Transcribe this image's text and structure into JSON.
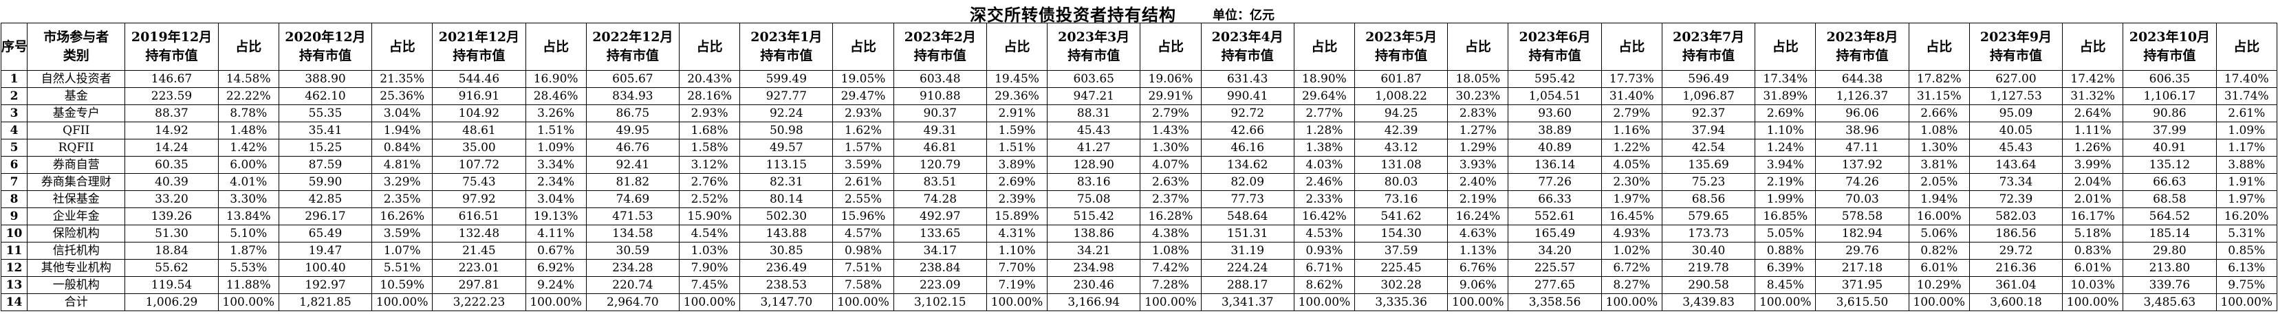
{
  "title": "深交所转债投资者持有结构",
  "unit_label": "单位：亿元",
  "table": {
    "index_header": "序号",
    "category_header": "市场参与者\n类别",
    "value_header_suffix": "持有市值",
    "ratio_header": "占比",
    "periods": [
      "2019年12月",
      "2020年12月",
      "2021年12月",
      "2022年12月",
      "2023年1月",
      "2023年2月",
      "2023年3月",
      "2023年4月",
      "2023年5月",
      "2023年6月",
      "2023年7月",
      "2023年8月",
      "2023年9月",
      "2023年10月"
    ],
    "rows": [
      {
        "index": "1",
        "category": "自然人投资者",
        "values": [
          "146.67",
          "388.90",
          "544.46",
          "605.67",
          "599.49",
          "603.48",
          "603.65",
          "631.43",
          "601.87",
          "595.42",
          "596.49",
          "644.38",
          "627.00",
          "606.35"
        ],
        "ratios": [
          "14.58%",
          "21.35%",
          "16.90%",
          "20.43%",
          "19.05%",
          "19.45%",
          "19.06%",
          "18.90%",
          "18.05%",
          "17.73%",
          "17.34%",
          "17.82%",
          "17.42%",
          "17.40%"
        ]
      },
      {
        "index": "2",
        "category": "基金",
        "values": [
          "223.59",
          "462.10",
          "916.91",
          "834.93",
          "927.77",
          "910.88",
          "947.21",
          "990.41",
          "1,008.22",
          "1,054.51",
          "1,096.87",
          "1,126.37",
          "1,127.53",
          "1,106.17"
        ],
        "ratios": [
          "22.22%",
          "25.36%",
          "28.46%",
          "28.16%",
          "29.47%",
          "29.36%",
          "29.91%",
          "29.64%",
          "30.23%",
          "31.40%",
          "31.89%",
          "31.15%",
          "31.32%",
          "31.74%"
        ]
      },
      {
        "index": "3",
        "category": "基金专户",
        "values": [
          "88.37",
          "55.35",
          "104.92",
          "86.75",
          "92.24",
          "90.37",
          "88.31",
          "92.72",
          "94.25",
          "93.60",
          "92.37",
          "96.06",
          "95.09",
          "90.86"
        ],
        "ratios": [
          "8.78%",
          "3.04%",
          "3.26%",
          "2.93%",
          "2.93%",
          "2.91%",
          "2.79%",
          "2.77%",
          "2.83%",
          "2.79%",
          "2.69%",
          "2.66%",
          "2.64%",
          "2.61%"
        ]
      },
      {
        "index": "4",
        "category": "QFII",
        "values": [
          "14.92",
          "35.41",
          "48.61",
          "49.95",
          "50.98",
          "49.31",
          "45.43",
          "42.66",
          "42.39",
          "38.89",
          "37.94",
          "38.96",
          "40.05",
          "37.99"
        ],
        "ratios": [
          "1.48%",
          "1.94%",
          "1.51%",
          "1.68%",
          "1.62%",
          "1.59%",
          "1.43%",
          "1.28%",
          "1.27%",
          "1.16%",
          "1.10%",
          "1.08%",
          "1.11%",
          "1.09%"
        ]
      },
      {
        "index": "5",
        "category": "RQFII",
        "values": [
          "14.24",
          "15.25",
          "35.00",
          "46.76",
          "49.57",
          "46.81",
          "41.27",
          "46.16",
          "43.12",
          "40.89",
          "42.54",
          "47.11",
          "45.43",
          "40.91"
        ],
        "ratios": [
          "1.42%",
          "0.84%",
          "1.09%",
          "1.58%",
          "1.57%",
          "1.51%",
          "1.30%",
          "1.38%",
          "1.29%",
          "1.22%",
          "1.24%",
          "1.30%",
          "1.26%",
          "1.17%"
        ]
      },
      {
        "index": "6",
        "category": "券商自营",
        "values": [
          "60.35",
          "87.59",
          "107.72",
          "92.41",
          "113.15",
          "120.79",
          "128.90",
          "134.62",
          "131.08",
          "136.14",
          "135.69",
          "137.92",
          "143.64",
          "135.12"
        ],
        "ratios": [
          "6.00%",
          "4.81%",
          "3.34%",
          "3.12%",
          "3.59%",
          "3.89%",
          "4.07%",
          "4.03%",
          "3.93%",
          "4.05%",
          "3.94%",
          "3.81%",
          "3.99%",
          "3.88%"
        ]
      },
      {
        "index": "7",
        "category": "券商集合理财",
        "values": [
          "40.39",
          "59.90",
          "75.43",
          "81.82",
          "82.31",
          "83.51",
          "83.16",
          "82.09",
          "80.03",
          "77.26",
          "75.23",
          "74.26",
          "73.34",
          "66.63"
        ],
        "ratios": [
          "4.01%",
          "3.29%",
          "2.34%",
          "2.76%",
          "2.61%",
          "2.69%",
          "2.63%",
          "2.46%",
          "2.40%",
          "2.30%",
          "2.19%",
          "2.05%",
          "2.04%",
          "1.91%"
        ]
      },
      {
        "index": "8",
        "category": "社保基金",
        "values": [
          "33.20",
          "42.85",
          "97.92",
          "74.69",
          "80.14",
          "74.28",
          "75.08",
          "77.73",
          "73.16",
          "66.33",
          "68.56",
          "70.03",
          "72.39",
          "68.58"
        ],
        "ratios": [
          "3.30%",
          "2.35%",
          "3.04%",
          "2.52%",
          "2.55%",
          "2.39%",
          "2.37%",
          "2.33%",
          "2.19%",
          "1.97%",
          "1.99%",
          "1.94%",
          "2.01%",
          "1.97%"
        ]
      },
      {
        "index": "9",
        "category": "企业年金",
        "values": [
          "139.26",
          "296.17",
          "616.51",
          "471.53",
          "502.30",
          "492.97",
          "515.42",
          "548.64",
          "541.62",
          "552.61",
          "579.65",
          "578.58",
          "582.03",
          "564.52"
        ],
        "ratios": [
          "13.84%",
          "16.26%",
          "19.13%",
          "15.90%",
          "15.96%",
          "15.89%",
          "16.28%",
          "16.42%",
          "16.24%",
          "16.45%",
          "16.85%",
          "16.00%",
          "16.17%",
          "16.20%"
        ]
      },
      {
        "index": "10",
        "category": "保险机构",
        "values": [
          "51.30",
          "65.49",
          "132.48",
          "134.58",
          "143.88",
          "133.65",
          "138.86",
          "151.31",
          "154.30",
          "165.49",
          "173.73",
          "182.94",
          "186.56",
          "185.14"
        ],
        "ratios": [
          "5.10%",
          "3.59%",
          "4.11%",
          "4.54%",
          "4.57%",
          "4.31%",
          "4.38%",
          "4.53%",
          "4.63%",
          "4.93%",
          "5.05%",
          "5.06%",
          "5.18%",
          "5.31%"
        ]
      },
      {
        "index": "11",
        "category": "信托机构",
        "values": [
          "18.84",
          "19.47",
          "21.45",
          "30.59",
          "30.85",
          "34.17",
          "34.21",
          "31.19",
          "37.59",
          "34.20",
          "30.40",
          "29.76",
          "29.72",
          "29.80"
        ],
        "ratios": [
          "1.87%",
          "1.07%",
          "0.67%",
          "1.03%",
          "0.98%",
          "1.10%",
          "1.08%",
          "0.93%",
          "1.13%",
          "1.02%",
          "0.88%",
          "0.82%",
          "0.83%",
          "0.85%"
        ]
      },
      {
        "index": "12",
        "category": "其他专业机构",
        "values": [
          "55.62",
          "100.40",
          "223.01",
          "234.28",
          "236.49",
          "238.84",
          "234.98",
          "224.24",
          "225.45",
          "225.57",
          "219.78",
          "217.18",
          "216.36",
          "213.80"
        ],
        "ratios": [
          "5.53%",
          "5.51%",
          "6.92%",
          "7.90%",
          "7.51%",
          "7.70%",
          "7.42%",
          "6.71%",
          "6.76%",
          "6.72%",
          "6.39%",
          "6.01%",
          "6.01%",
          "6.13%"
        ]
      },
      {
        "index": "13",
        "category": "一般机构",
        "values": [
          "119.54",
          "192.97",
          "297.81",
          "220.74",
          "238.53",
          "223.09",
          "230.46",
          "288.17",
          "302.28",
          "277.65",
          "290.58",
          "371.95",
          "361.04",
          "339.76"
        ],
        "ratios": [
          "11.88%",
          "10.59%",
          "9.24%",
          "7.45%",
          "7.58%",
          "7.19%",
          "7.28%",
          "8.62%",
          "9.06%",
          "8.27%",
          "8.45%",
          "10.29%",
          "10.03%",
          "9.75%"
        ]
      },
      {
        "index": "14",
        "category": "合计",
        "values": [
          "1,006.29",
          "1,821.85",
          "3,222.23",
          "2,964.70",
          "3,147.70",
          "3,102.15",
          "3,166.94",
          "3,341.37",
          "3,335.36",
          "3,358.56",
          "3,439.83",
          "3,615.50",
          "3,600.18",
          "3,485.63"
        ],
        "ratios": [
          "100.00%",
          "100.00%",
          "100.00%",
          "100.00%",
          "100.00%",
          "100.00%",
          "100.00%",
          "100.00%",
          "100.00%",
          "100.00%",
          "100.00%",
          "100.00%",
          "100.00%",
          "100.00%"
        ]
      }
    ]
  }
}
